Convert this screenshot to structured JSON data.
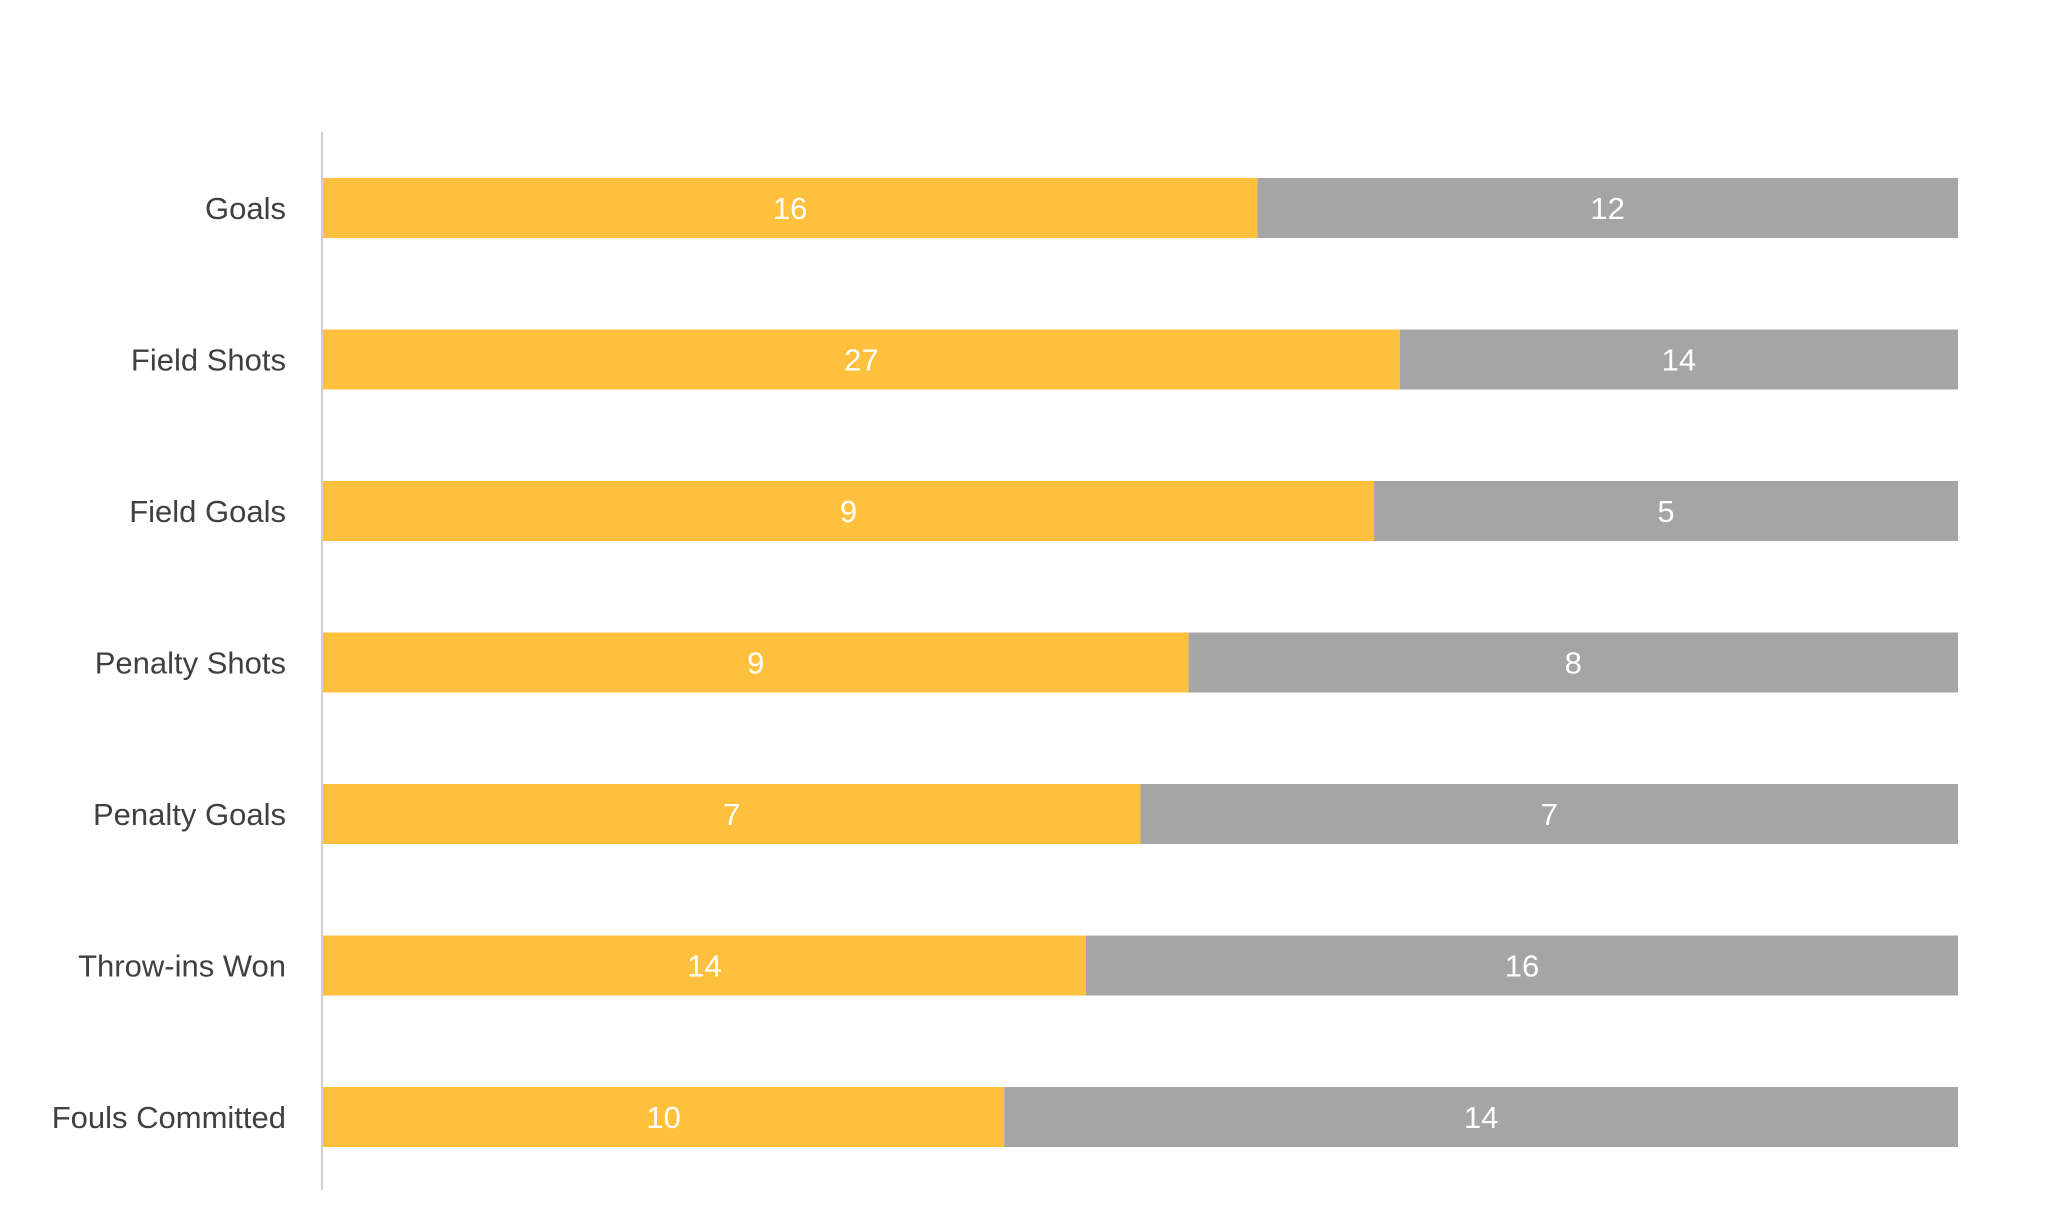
{
  "chart_data": {
    "type": "bar",
    "orientation": "horizontal",
    "stacking": "percent",
    "categories": [
      "Goals",
      "Field Shots",
      "Field Goals",
      "Penalty Shots",
      "Penalty Goals",
      "Throw-ins Won",
      "Fouls Committed"
    ],
    "series": [
      {
        "color": "#FFC03D",
        "values": [
          16,
          27,
          9,
          9,
          7,
          14,
          10
        ]
      },
      {
        "color": "#A5A5A5",
        "values": [
          12,
          14,
          5,
          8,
          7,
          16,
          14
        ]
      }
    ],
    "title": "",
    "xlabel": "",
    "ylabel": "",
    "grid": false,
    "legend": "none",
    "data_labels": true,
    "axis_color": "#D0D0D0"
  }
}
